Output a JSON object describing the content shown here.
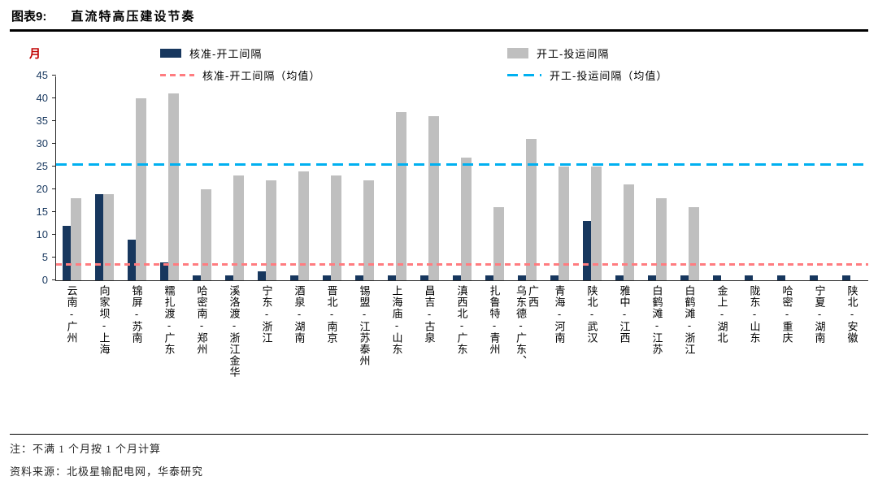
{
  "header": {
    "fig_label": "图表9:",
    "title": "直流特高压建设节奏"
  },
  "chart_data": {
    "type": "bar",
    "title": "直流特高压建设节奏",
    "unit": "月",
    "ylabel": "月",
    "xlabel": "",
    "ylim": [
      0,
      45
    ],
    "ytick_step": 5,
    "grid": false,
    "legend_position": "top",
    "categories": [
      "云南-广州",
      "向家坝-上海",
      "锦屏-苏南",
      "糯扎渡-广东",
      "哈密南-郑州",
      "溪洛渡-浙江金华",
      "宁东-浙江",
      "酒泉-湖南",
      "晋北-南京",
      "锡盟-江苏泰州",
      "上海庙-山东",
      "昌吉-古泉",
      "滇西北-广东",
      "扎鲁特-青州",
      "乌东德-广东、\n广西",
      "青海-河南",
      "陕北-武汉",
      "雅中-江西",
      "白鹤滩-江苏",
      "白鹤滩-浙江",
      "金上-湖北",
      "陇东-山东",
      "哈密-重庆",
      "宁夏-湖南",
      "陕北-安徽"
    ],
    "series": [
      {
        "name": "核准-开工间隔",
        "color": "#17375E",
        "values": [
          12,
          19,
          9,
          4,
          1,
          1,
          2,
          1,
          1,
          1,
          1,
          1,
          1,
          1,
          1,
          1,
          13,
          1,
          1,
          1,
          1,
          1,
          1,
          1,
          1
        ]
      },
      {
        "name": "开工-投运间隔",
        "color": "#BFBFBF",
        "values": [
          18,
          19,
          40,
          41,
          20,
          23,
          22,
          24,
          23,
          22,
          37,
          36,
          27,
          16,
          31,
          25,
          25,
          21,
          18,
          16,
          0,
          0,
          0,
          0,
          0
        ]
      }
    ],
    "mean_lines": [
      {
        "name": "核准-开工间隔（均值）",
        "color": "#FF7C80",
        "value": 3.5
      },
      {
        "name": "开工-投运间隔（均值）",
        "color": "#00B0F0",
        "value": 25.4
      }
    ]
  },
  "footer": {
    "note": "注：不满 1 个月按 1 个月计算",
    "source": "资料来源：北极星输配电网，华泰研究"
  }
}
